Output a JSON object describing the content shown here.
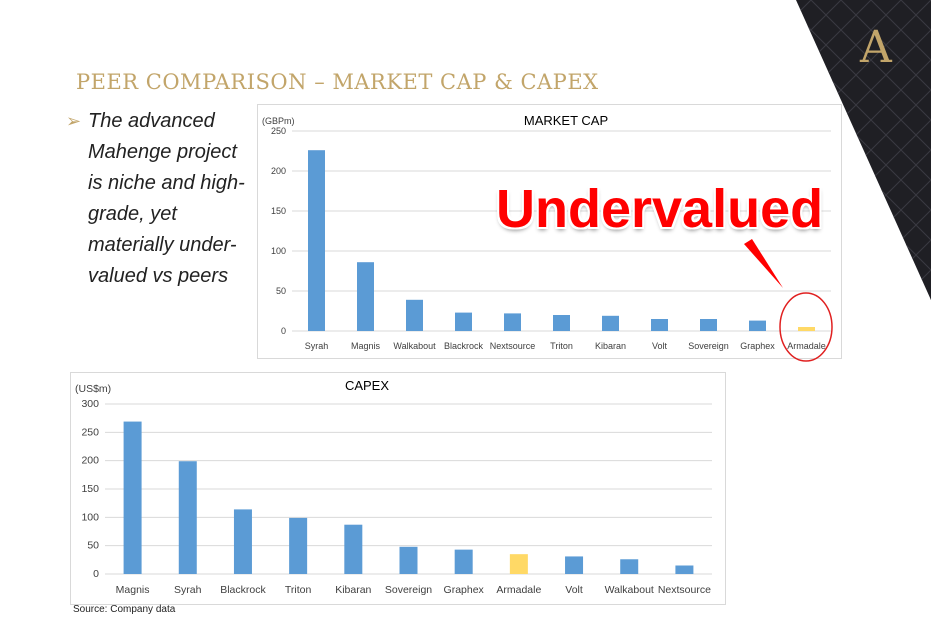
{
  "slide": {
    "title": "PEER COMPARISON – MARKET CAP & CAPEX",
    "bullet": "The advanced\nMahenge project\nis niche and high-\ngrade, yet\nmaterially under-\nvalued  vs peers",
    "callout": "Undervalued",
    "source": "Source: Company data",
    "logo_letter": "A",
    "colors": {
      "gold": "#c2a56a",
      "bar_blue": "#5b9bd5",
      "highlight": "#ffd966",
      "callout_red": "#ff0000",
      "dark_panel": "#1f1f24"
    }
  },
  "chart_data": [
    {
      "type": "bar",
      "title": "MARKET CAP",
      "ylabel": "(GBPm)",
      "ylim": [
        0,
        250
      ],
      "yticks": [
        0,
        50,
        100,
        150,
        200,
        250
      ],
      "categories": [
        "Syrah",
        "Magnis",
        "Walkabout",
        "Blackrock",
        "Nextsource",
        "Triton",
        "Kibaran",
        "Volt",
        "Sovereign",
        "Graphex",
        "Armadale"
      ],
      "values": [
        226,
        86,
        39,
        23,
        22,
        20,
        19,
        15,
        15,
        13,
        5
      ],
      "highlight": "Armadale",
      "grid": true
    },
    {
      "type": "bar",
      "title": "CAPEX",
      "ylabel": "(US$m)",
      "ylim": [
        0,
        300
      ],
      "yticks": [
        0,
        50,
        100,
        150,
        200,
        250,
        300
      ],
      "categories": [
        "Magnis",
        "Syrah",
        "Blackrock",
        "Triton",
        "Kibaran",
        "Sovereign",
        "Graphex",
        "Armadale",
        "Volt",
        "Walkabout",
        "Nextsource"
      ],
      "values": [
        269,
        199,
        114,
        99,
        87,
        48,
        43,
        35,
        31,
        26,
        15
      ],
      "highlight": "Armadale",
      "grid": true
    }
  ]
}
